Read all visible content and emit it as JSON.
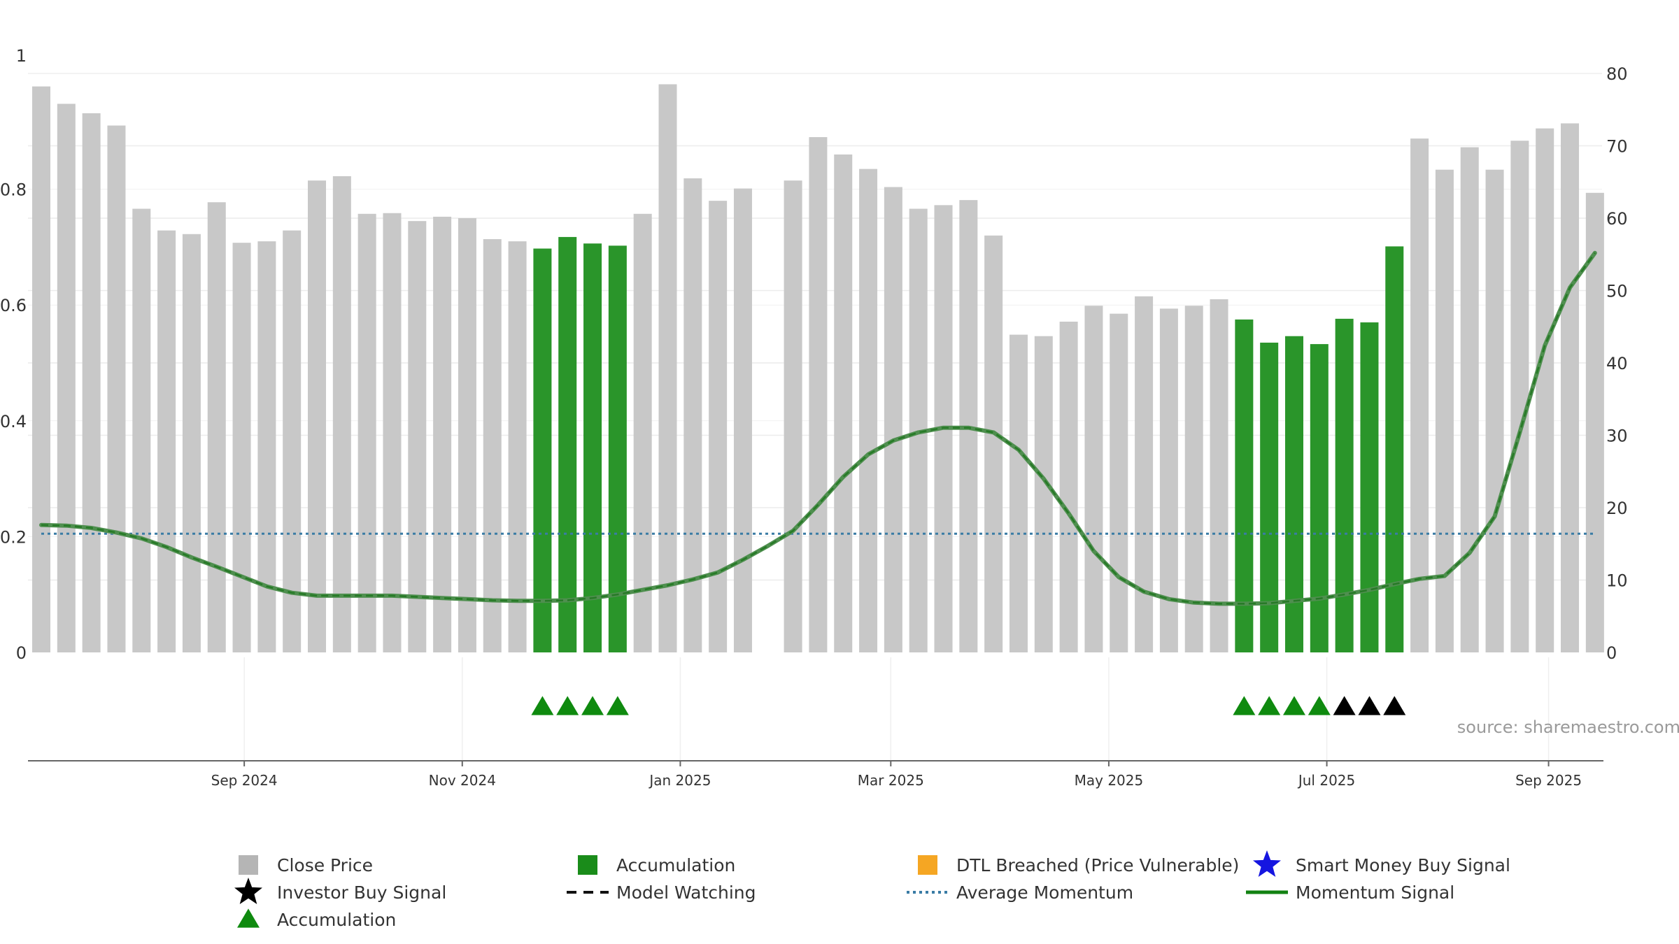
{
  "chart_data": {
    "type": "bar",
    "source_label": "source: sharemaestro.com",
    "left_axis": {
      "range": [
        0,
        1
      ],
      "ticks": [
        "0",
        "0.2",
        "0.4",
        "0.6",
        "0.8",
        "1"
      ]
    },
    "right_axis": {
      "range": [
        0,
        80
      ],
      "ticks": [
        "0",
        "10",
        "20",
        "30",
        "40",
        "50",
        "60",
        "70",
        "80"
      ]
    },
    "x_ticks": [
      {
        "label": "Sep 2024",
        "index": 8.1
      },
      {
        "label": "Nov 2024",
        "index": 16.8
      },
      {
        "label": "Jan 2025",
        "index": 25.5
      },
      {
        "label": "Mar 2025",
        "index": 33.9
      },
      {
        "label": "May 2025",
        "index": 42.6
      },
      {
        "label": "Jul 2025",
        "index": 51.3
      },
      {
        "label": "Sep 2025",
        "index": 60.15
      }
    ],
    "close_price": [
      78.2,
      75.8,
      74.5,
      72.8,
      61.3,
      58.3,
      57.8,
      62.2,
      56.6,
      56.8,
      58.3,
      65.2,
      65.8,
      60.6,
      60.7,
      59.6,
      60.2,
      60.0,
      57.1,
      56.8,
      55.8,
      57.4,
      56.5,
      56.2,
      60.6,
      78.5,
      65.5,
      62.4,
      64.1,
      null,
      65.2,
      71.2,
      68.8,
      66.8,
      64.3,
      61.3,
      61.8,
      62.5,
      57.6,
      43.9,
      43.7,
      45.7,
      47.9,
      46.8,
      49.2,
      47.5,
      47.9,
      48.8,
      46.0,
      42.8,
      43.7,
      42.6,
      46.1,
      45.6,
      56.1,
      71.0,
      66.7,
      69.8,
      66.7,
      70.7,
      72.4,
      73.1,
      63.5
    ],
    "accumulation_bars": [
      20,
      21,
      22,
      23,
      48,
      49,
      50,
      51,
      52,
      53,
      54
    ],
    "momentum_signal": [
      0.22,
      0.219,
      0.215,
      0.207,
      0.197,
      0.182,
      0.164,
      0.148,
      0.131,
      0.114,
      0.103,
      0.098,
      0.098,
      0.098,
      0.098,
      0.096,
      0.094,
      0.092,
      0.09,
      0.089,
      0.089,
      0.09,
      0.094,
      0.1,
      0.108,
      0.116,
      0.126,
      0.138,
      0.16,
      0.184,
      0.21,
      0.255,
      0.303,
      0.342,
      0.366,
      0.38,
      0.388,
      0.388,
      0.38,
      0.35,
      0.3,
      0.24,
      0.175,
      0.13,
      0.105,
      0.092,
      0.086,
      0.084,
      0.084,
      0.085,
      0.089,
      0.093,
      0.1,
      0.108,
      0.118,
      0.127,
      0.132,
      0.172,
      0.235,
      0.38,
      0.53,
      0.63,
      0.69
    ],
    "average_momentum": 0.205,
    "accumulation_markers": [
      20,
      21,
      22,
      23,
      48,
      49,
      50,
      51
    ],
    "investor_buy_markers": [
      52,
      53,
      54
    ],
    "colors": {
      "close_price": "#c8c8c8",
      "accumulation": "#2a952a",
      "momentum": "#4f8f4f",
      "momentum_dash": "#167016",
      "average_momentum": "#3a7ca5",
      "dtl": "#f5a623",
      "smart_money": "#1515e0"
    },
    "legend": [
      {
        "label": "Close Price",
        "symbol": "gray-square-icon"
      },
      {
        "label": "Accumulation",
        "symbol": "green-square-icon"
      },
      {
        "label": "DTL Breached (Price Vulnerable)",
        "symbol": "orange-square-icon"
      },
      {
        "label": "Smart Money Buy Signal",
        "symbol": "blue-star-icon"
      },
      {
        "label": "Investor Buy Signal",
        "symbol": "black-star-icon"
      },
      {
        "label": "Model Watching",
        "symbol": "black-dashed-line-icon"
      },
      {
        "label": "Average Momentum",
        "symbol": "blue-dotted-line-icon"
      },
      {
        "label": "Momentum Signal",
        "symbol": "green-line-icon"
      },
      {
        "label": "Accumulation",
        "symbol": "green-triangle-icon"
      }
    ]
  }
}
